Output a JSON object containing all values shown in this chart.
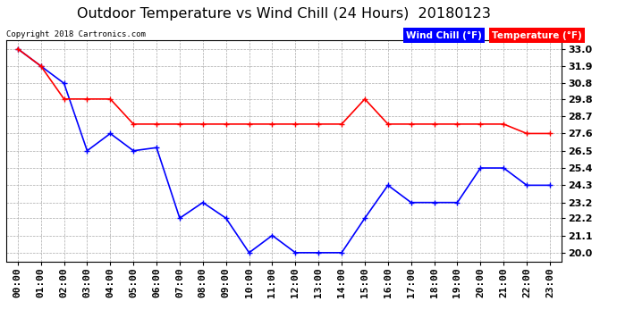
{
  "title": "Outdoor Temperature vs Wind Chill (24 Hours)  20180123",
  "copyright": "Copyright 2018 Cartronics.com",
  "legend_wind_chill": "Wind Chill (°F)",
  "legend_temperature": "Temperature (°F)",
  "x_labels": [
    "00:00",
    "01:00",
    "02:00",
    "03:00",
    "04:00",
    "05:00",
    "06:00",
    "07:00",
    "08:00",
    "09:00",
    "10:00",
    "11:00",
    "12:00",
    "13:00",
    "14:00",
    "15:00",
    "16:00",
    "17:00",
    "18:00",
    "19:00",
    "20:00",
    "21:00",
    "22:00",
    "23:00"
  ],
  "y_ticks": [
    20.0,
    21.1,
    22.2,
    23.2,
    24.3,
    25.4,
    26.5,
    27.6,
    28.7,
    29.8,
    30.8,
    31.9,
    33.0
  ],
  "y_min": 19.45,
  "y_max": 33.55,
  "wind_chill": [
    33.0,
    31.9,
    30.8,
    26.5,
    27.6,
    26.5,
    26.7,
    22.2,
    23.2,
    22.2,
    20.0,
    21.1,
    20.0,
    20.0,
    20.0,
    22.2,
    24.3,
    23.2,
    23.2,
    23.2,
    25.4,
    25.4,
    24.3,
    24.3
  ],
  "temperature": [
    33.0,
    31.9,
    29.8,
    29.8,
    29.8,
    28.2,
    28.2,
    28.2,
    28.2,
    28.2,
    28.2,
    28.2,
    28.2,
    28.2,
    28.2,
    29.8,
    28.2,
    28.2,
    28.2,
    28.2,
    28.2,
    28.2,
    27.6,
    27.6
  ],
  "wind_chill_color": "#0000ff",
  "temperature_color": "#ff0000",
  "background_color": "#ffffff",
  "grid_color": "#aaaaaa",
  "title_fontsize": 11.5,
  "tick_fontsize": 8,
  "copyright_fontsize": 6.5
}
